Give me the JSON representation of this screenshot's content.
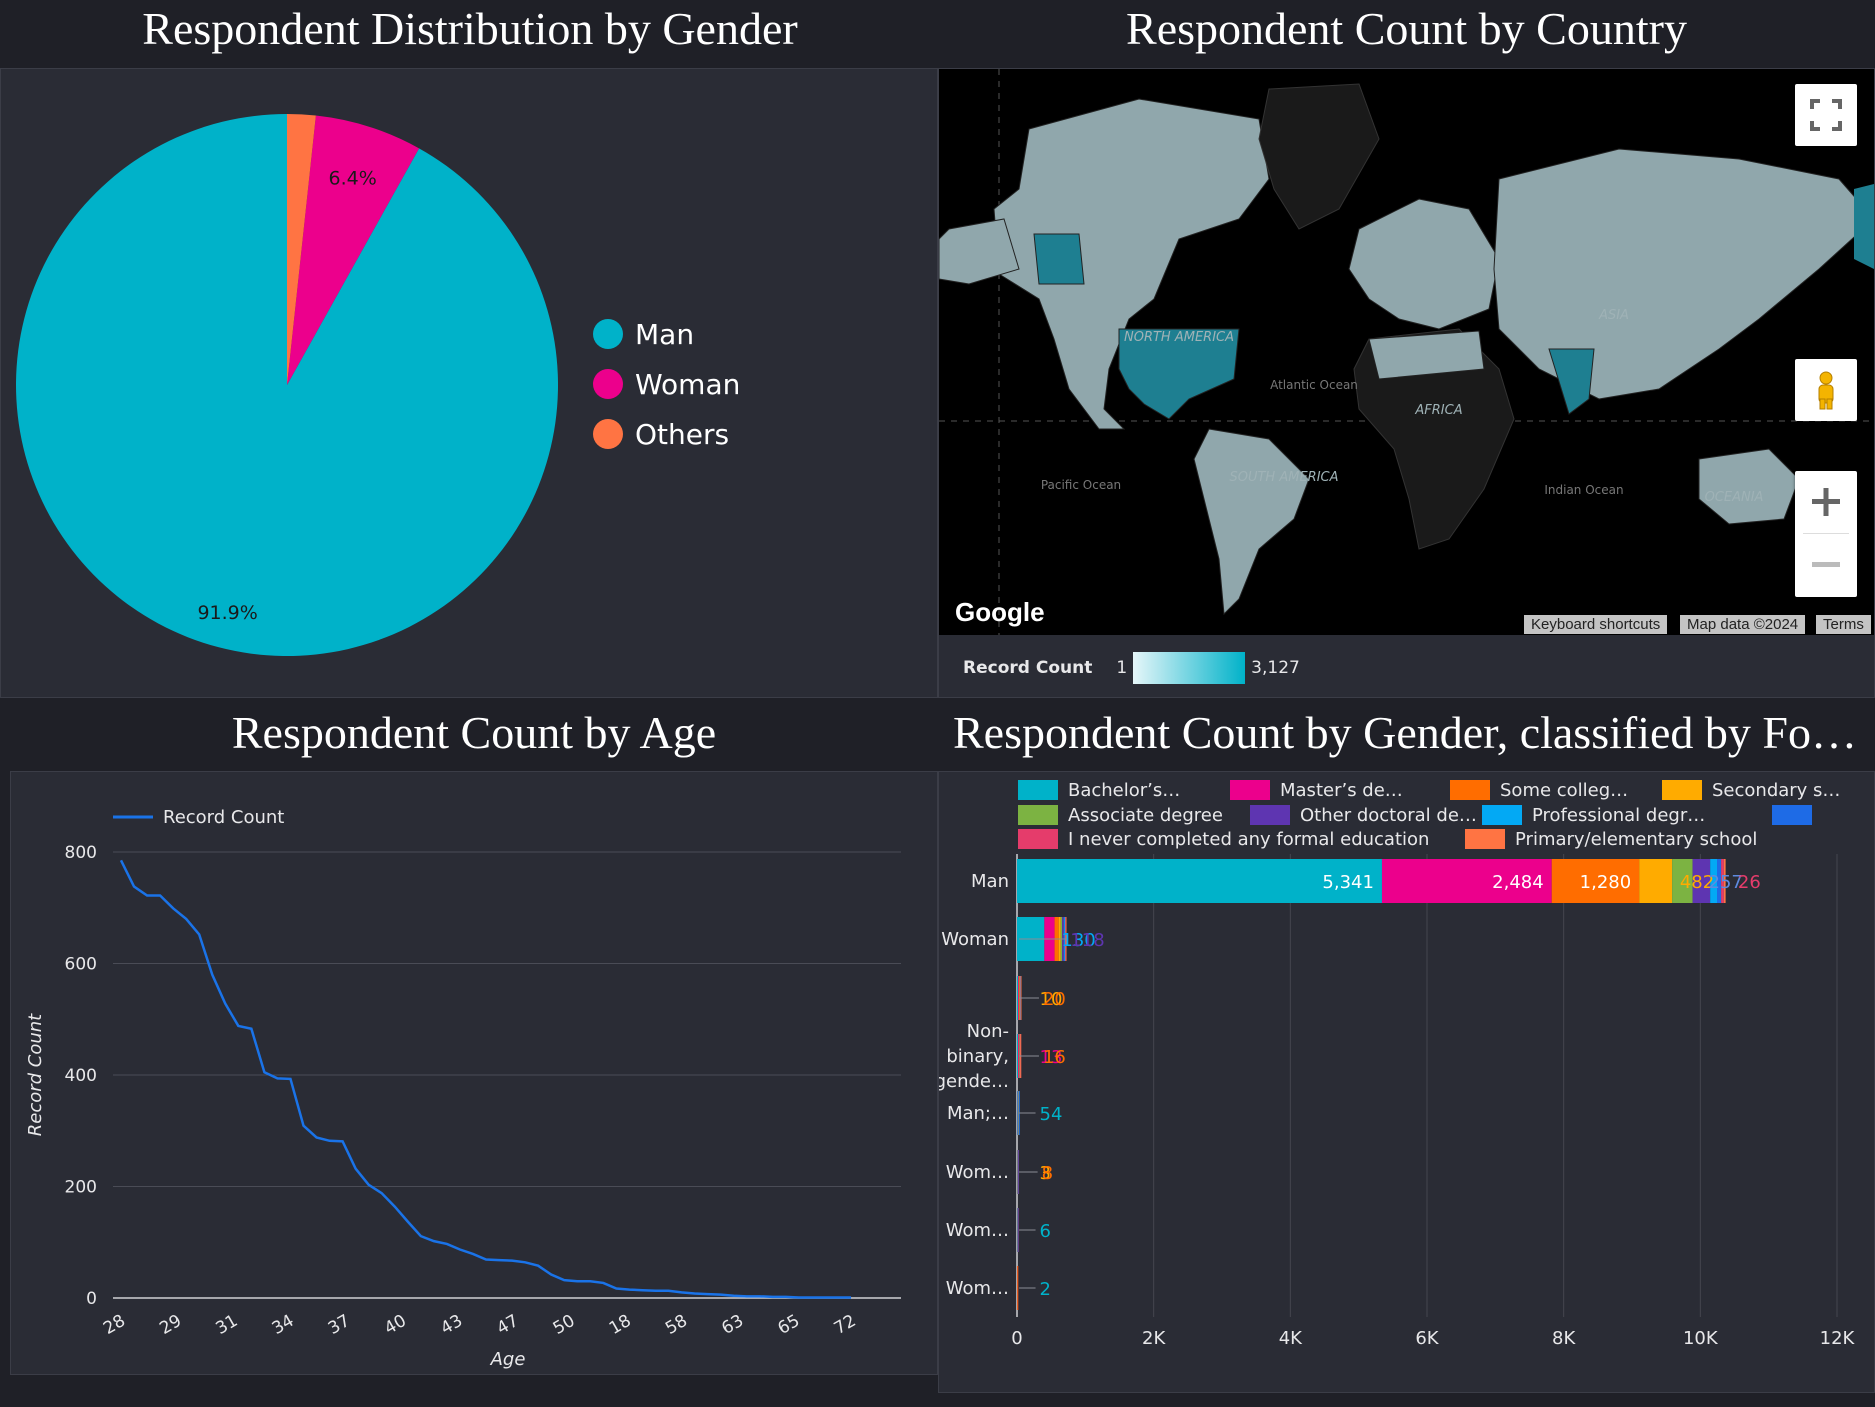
{
  "titles": {
    "gender": "Respondent Distribution by Gender",
    "country": "Respondent Count by Country",
    "age": "Respondent Count by Age",
    "gender_ed": "Respondent Count by Gender, classified by Fo…"
  },
  "colors": {
    "background": "#1f2027",
    "panel": "#2a2c35",
    "teal": "#00b2c9",
    "magenta": "#ec008c",
    "orange": "#ff7443",
    "line_blue": "#1a73e8"
  },
  "map": {
    "logo": "Google",
    "attr_shortcuts": "Keyboard shortcuts",
    "attr_data": "Map data ©2024",
    "attr_terms": "Terms",
    "scale_label": "Record Count",
    "scale_min": "1",
    "scale_max": "3,127",
    "labels": {
      "north_america": "NORTH AMERICA",
      "south_america": "SOUTH AMERICA",
      "africa": "AFRICA",
      "asia": "ASIA",
      "oceania": "OCEANIA",
      "atlantic": "Atlantic Ocean",
      "pacific": "Pacific Ocean",
      "indian": "Indian Ocean"
    },
    "icons": [
      "fullscreen-icon",
      "pegman-icon",
      "zoom-in-icon",
      "zoom-out-icon"
    ]
  },
  "chart_data": [
    {
      "type": "pie",
      "title": "Respondent Distribution by Gender",
      "categories": [
        "Man",
        "Woman",
        "Others"
      ],
      "values": [
        91.9,
        6.4,
        1.7
      ],
      "data_labels": [
        "91.9%",
        "6.4%",
        ""
      ],
      "colors": [
        "#00b2c9",
        "#ec008c",
        "#ff7443"
      ],
      "legend_position": "right"
    },
    {
      "type": "line",
      "title": "Respondent Count by Age",
      "xlabel": "Age",
      "ylabel": "Record Count",
      "series": [
        {
          "name": "Record Count",
          "color": "#1a73e8",
          "values": [
            785,
            738,
            722,
            722,
            699,
            680,
            652,
            580,
            528,
            488,
            483,
            405,
            394,
            393,
            309,
            288,
            282,
            281,
            232,
            203,
            188,
            164,
            137,
            111,
            102,
            97,
            87,
            79,
            69,
            68,
            67,
            64,
            58,
            42,
            32,
            30,
            30,
            27,
            17,
            15,
            14,
            13,
            13,
            10,
            8,
            7,
            6,
            4,
            3,
            3,
            2,
            2,
            1,
            1,
            1,
            1,
            1
          ]
        }
      ],
      "x_tick_labels": [
        "28",
        "29",
        "31",
        "34",
        "37",
        "40",
        "43",
        "47",
        "50",
        "18",
        "58",
        "63",
        "65",
        "72"
      ],
      "ylim": [
        0,
        800
      ],
      "y_ticks": [
        0,
        200,
        400,
        600,
        800
      ],
      "grid": true,
      "legend_position": "top-left"
    },
    {
      "type": "bar",
      "orientation": "horizontal",
      "stacked": true,
      "title": "Respondent Count by Gender, classified by Fo…",
      "categories": [
        "Man",
        "Woman",
        "",
        "Non-binary, gende…",
        "Man;…",
        "Wom…",
        "Wom…",
        "Wom…"
      ],
      "legend_entries": [
        "Bachelor’s…",
        "Master’s de…",
        "Some colleg…",
        "Secondary s…",
        "Associate degree",
        "Other doctoral de…",
        "Professional degr…",
        "",
        "I never completed any formal education",
        "Primary/elementary school"
      ],
      "series": [
        {
          "name": "Bachelor’s…",
          "color": "#00b2c9",
          "values": [
            5341,
            400,
            15,
            15,
            10,
            5,
            6,
            2
          ]
        },
        {
          "name": "Master’s de…",
          "color": "#ec008c",
          "values": [
            2484,
            150,
            10,
            10,
            5,
            3,
            2,
            1
          ]
        },
        {
          "name": "Some colleg…",
          "color": "#ff6d00",
          "values": [
            1280,
            60,
            8,
            6,
            3,
            2,
            1,
            1
          ]
        },
        {
          "name": "Secondary s…",
          "color": "#ffab00",
          "values": [
            482,
            30,
            5,
            4,
            2,
            1,
            1,
            0
          ]
        },
        {
          "name": "Associate degree",
          "color": "#7cb342",
          "values": [
            300,
            20,
            3,
            3,
            2,
            1,
            0,
            0
          ]
        },
        {
          "name": "Other doctoral de…",
          "color": "#5e35b1",
          "values": [
            257,
            25,
            4,
            4,
            2,
            1,
            1,
            0
          ]
        },
        {
          "name": "Professional degr…",
          "color": "#03a9f4",
          "values": [
            100,
            10,
            3,
            2,
            1,
            0,
            0,
            0
          ]
        },
        {
          "name": "",
          "color": "#1e6be6",
          "values": [
            60,
            10,
            2,
            2,
            1,
            0,
            0,
            0
          ]
        },
        {
          "name": "I never completed any formal education",
          "color": "#e53c6b",
          "values": [
            40,
            5,
            1,
            1,
            0,
            0,
            0,
            0
          ]
        },
        {
          "name": "Primary/elementary school",
          "color": "#ff7443",
          "values": [
            26,
            5,
            1,
            1,
            0,
            0,
            0,
            0
          ]
        }
      ],
      "data_labels": {
        "Man": [
          "5,341",
          "2,484",
          "1,280",
          "482",
          "257",
          "26"
        ],
        "Woman": [
          "130",
          "118"
        ],
        "row3": [
          "10",
          "20"
        ],
        "row4": [
          "13",
          "16"
        ],
        "row5": [
          "54"
        ],
        "row6": [
          "3",
          "8"
        ],
        "row7": [
          "6"
        ],
        "row8": [
          "2"
        ]
      },
      "x_ticks": [
        "0",
        "2K",
        "4K",
        "6K",
        "8K",
        "10K",
        "12K"
      ],
      "xlim": [
        0,
        12000
      ],
      "grid": true,
      "legend_position": "top"
    }
  ]
}
